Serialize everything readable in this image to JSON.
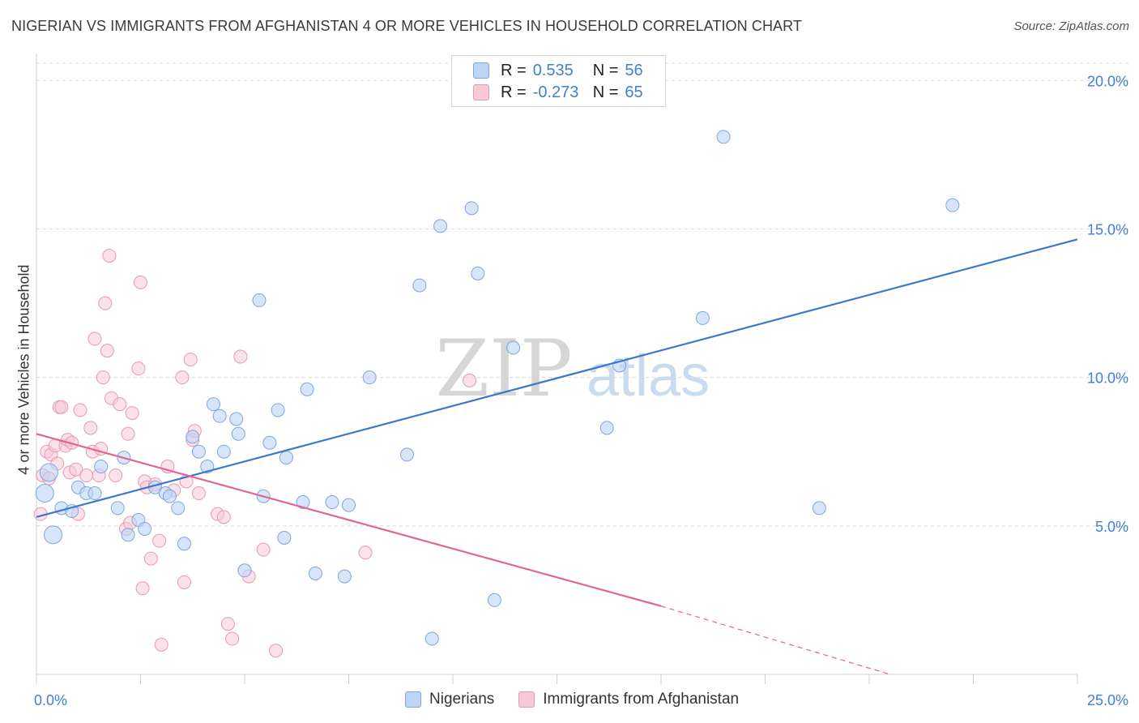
{
  "title": "NIGERIAN VS IMMIGRANTS FROM AFGHANISTAN 4 OR MORE VEHICLES IN HOUSEHOLD CORRELATION CHART",
  "source": "Source: ZipAtlas.com",
  "watermark": {
    "zip": "ZIP",
    "atlas": "atlas"
  },
  "legend": {
    "rows": [
      {
        "r_label": "R =",
        "r_value": "0.535",
        "n_label": "N =",
        "n_value": "56"
      },
      {
        "r_label": "R =",
        "r_value": "-0.273",
        "n_label": "N =",
        "n_value": "65"
      }
    ]
  },
  "bottom_legend": [
    "Nigerians",
    "Immigrants from Afghanistan"
  ],
  "colors": {
    "blue_fill": "#bcd4f6",
    "blue_stroke": "#7ea6df",
    "blue_line": "#3a78d0",
    "pink_fill": "#f8c8d6",
    "pink_stroke": "#e79ab2",
    "pink_line": "#e2648f",
    "tick_label": "#3f7fd6",
    "grid": "#d9d9d9"
  },
  "chart_data": {
    "type": "scatter",
    "title": "NIGERIAN VS IMMIGRANTS FROM AFGHANISTAN 4 OR MORE VEHICLES IN HOUSEHOLD CORRELATION CHART",
    "xlabel": "",
    "ylabel": "4 or more Vehicles in Household",
    "xlim": [
      0,
      25
    ],
    "ylim": [
      0,
      20.8
    ],
    "x_tick_labels": [
      "0.0%",
      "25.0%"
    ],
    "y_ticks": [
      5,
      10,
      15,
      20
    ],
    "y_tick_labels": [
      "5.0%",
      "10.0%",
      "15.0%",
      "20.0%"
    ],
    "grid": true,
    "legend_placement": "top-center",
    "series": [
      {
        "name": "Nigerians",
        "points": [
          [
            0.2,
            6.1
          ],
          [
            0.3,
            6.8
          ],
          [
            0.4,
            4.7
          ],
          [
            0.6,
            5.6
          ],
          [
            0.85,
            5.5
          ],
          [
            1.0,
            6.3
          ],
          [
            1.2,
            6.1
          ],
          [
            1.4,
            6.1
          ],
          [
            1.55,
            7.0
          ],
          [
            1.95,
            5.6
          ],
          [
            2.1,
            7.3
          ],
          [
            2.2,
            4.7
          ],
          [
            2.45,
            5.2
          ],
          [
            2.6,
            4.9
          ],
          [
            2.85,
            6.3
          ],
          [
            3.1,
            6.1
          ],
          [
            3.2,
            6.0
          ],
          [
            3.4,
            5.6
          ],
          [
            3.55,
            4.4
          ],
          [
            3.75,
            8.0
          ],
          [
            3.9,
            7.5
          ],
          [
            4.1,
            7.0
          ],
          [
            4.25,
            9.1
          ],
          [
            4.4,
            8.7
          ],
          [
            4.5,
            7.5
          ],
          [
            4.8,
            8.6
          ],
          [
            4.85,
            8.1
          ],
          [
            5.0,
            3.5
          ],
          [
            5.35,
            12.6
          ],
          [
            5.45,
            6.0
          ],
          [
            5.6,
            7.8
          ],
          [
            5.8,
            8.9
          ],
          [
            5.95,
            4.6
          ],
          [
            6.0,
            7.3
          ],
          [
            6.4,
            5.8
          ],
          [
            6.5,
            9.6
          ],
          [
            6.7,
            3.4
          ],
          [
            7.1,
            5.8
          ],
          [
            7.4,
            3.3
          ],
          [
            7.5,
            5.7
          ],
          [
            8.0,
            10.0
          ],
          [
            8.9,
            7.4
          ],
          [
            9.2,
            13.1
          ],
          [
            9.5,
            1.2
          ],
          [
            9.7,
            15.1
          ],
          [
            10.45,
            15.7
          ],
          [
            10.6,
            13.5
          ],
          [
            11.0,
            2.5
          ],
          [
            11.45,
            11.0
          ],
          [
            13.7,
            8.3
          ],
          [
            14.0,
            10.4
          ],
          [
            16.0,
            12.0
          ],
          [
            16.5,
            18.1
          ],
          [
            18.8,
            5.6
          ],
          [
            22.0,
            15.8
          ]
        ],
        "trend": {
          "x": [
            0.0,
            25.0
          ],
          "y": [
            5.3,
            14.65
          ]
        }
      },
      {
        "name": "Immigrants from Afghanistan",
        "points": [
          [
            0.1,
            5.4
          ],
          [
            0.15,
            6.7
          ],
          [
            0.25,
            7.5
          ],
          [
            0.3,
            6.6
          ],
          [
            0.35,
            7.4
          ],
          [
            0.45,
            7.7
          ],
          [
            0.5,
            7.1
          ],
          [
            0.55,
            9.0
          ],
          [
            0.6,
            9.0
          ],
          [
            0.7,
            7.7
          ],
          [
            0.75,
            7.9
          ],
          [
            0.8,
            6.8
          ],
          [
            0.85,
            7.8
          ],
          [
            0.95,
            6.9
          ],
          [
            1.0,
            5.4
          ],
          [
            1.05,
            8.9
          ],
          [
            1.2,
            6.7
          ],
          [
            1.3,
            8.3
          ],
          [
            1.35,
            7.5
          ],
          [
            1.4,
            11.3
          ],
          [
            1.5,
            6.7
          ],
          [
            1.55,
            7.6
          ],
          [
            1.6,
            10.0
          ],
          [
            1.65,
            12.5
          ],
          [
            1.7,
            10.9
          ],
          [
            1.75,
            14.1
          ],
          [
            1.8,
            9.3
          ],
          [
            1.9,
            6.7
          ],
          [
            2.0,
            9.1
          ],
          [
            2.15,
            4.9
          ],
          [
            2.2,
            8.1
          ],
          [
            2.25,
            5.1
          ],
          [
            2.3,
            8.8
          ],
          [
            2.45,
            10.3
          ],
          [
            2.5,
            13.2
          ],
          [
            2.55,
            2.9
          ],
          [
            2.6,
            6.5
          ],
          [
            2.65,
            6.3
          ],
          [
            2.75,
            3.9
          ],
          [
            2.85,
            6.4
          ],
          [
            2.95,
            4.5
          ],
          [
            3.0,
            1.0
          ],
          [
            3.15,
            7.0
          ],
          [
            3.3,
            6.2
          ],
          [
            3.5,
            10.0
          ],
          [
            3.55,
            3.1
          ],
          [
            3.6,
            6.5
          ],
          [
            3.7,
            10.6
          ],
          [
            3.75,
            7.9
          ],
          [
            3.8,
            8.2
          ],
          [
            3.9,
            6.1
          ],
          [
            4.35,
            5.4
          ],
          [
            4.5,
            5.3
          ],
          [
            4.6,
            1.7
          ],
          [
            4.7,
            1.2
          ],
          [
            4.9,
            10.7
          ],
          [
            5.1,
            3.3
          ],
          [
            5.45,
            4.2
          ],
          [
            5.75,
            0.8
          ],
          [
            7.9,
            4.1
          ],
          [
            10.4,
            9.9
          ]
        ],
        "trend": {
          "x": [
            0.0,
            15.0
          ],
          "y": [
            8.1,
            2.3
          ]
        },
        "trend_dashed": {
          "x": [
            15.0,
            20.5
          ],
          "y": [
            2.3,
            0.0
          ]
        }
      }
    ]
  }
}
